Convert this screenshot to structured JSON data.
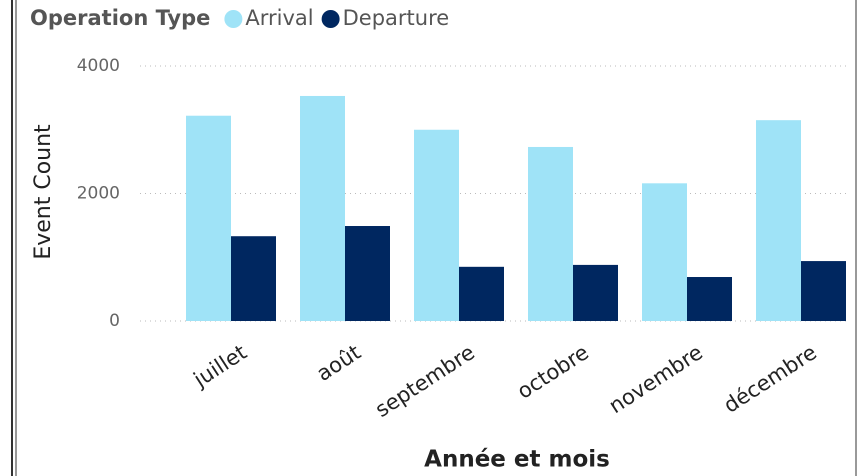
{
  "chart_data": {
    "type": "bar",
    "legend_title": "Operation Type",
    "categories": [
      "juillet",
      "août",
      "septembre",
      "octobre",
      "novembre",
      "décembre"
    ],
    "series": [
      {
        "name": "Arrival",
        "color": "#9fe3f7",
        "values": [
          3220,
          3530,
          3000,
          2730,
          2160,
          3150
        ]
      },
      {
        "name": "Departure",
        "color": "#002760",
        "values": [
          1330,
          1490,
          850,
          880,
          690,
          940
        ]
      }
    ],
    "ylabel": "Event Count",
    "xlabel": "Année et mois",
    "ylim": [
      0,
      4000
    ],
    "yticks": [
      0,
      2000,
      4000
    ],
    "grid": true,
    "legend": "top-left"
  }
}
